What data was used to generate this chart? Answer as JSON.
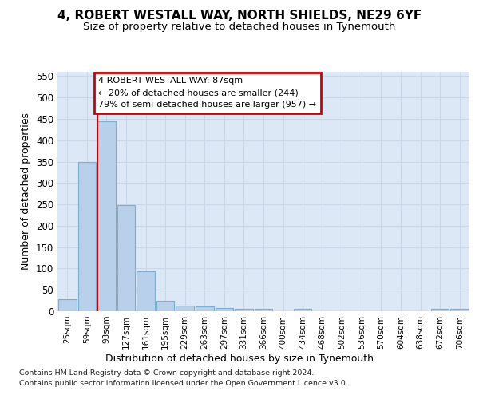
{
  "title1": "4, ROBERT WESTALL WAY, NORTH SHIELDS, NE29 6YF",
  "title2": "Size of property relative to detached houses in Tynemouth",
  "xlabel": "Distribution of detached houses by size in Tynemouth",
  "ylabel": "Number of detached properties",
  "bar_labels": [
    "25sqm",
    "59sqm",
    "93sqm",
    "127sqm",
    "161sqm",
    "195sqm",
    "229sqm",
    "263sqm",
    "297sqm",
    "331sqm",
    "366sqm",
    "400sqm",
    "434sqm",
    "468sqm",
    "502sqm",
    "536sqm",
    "570sqm",
    "604sqm",
    "638sqm",
    "672sqm",
    "706sqm"
  ],
  "bar_values": [
    28,
    350,
    445,
    248,
    93,
    25,
    14,
    11,
    7,
    6,
    5,
    0,
    5,
    0,
    0,
    0,
    0,
    0,
    0,
    5,
    5
  ],
  "bar_color": "#b8d0ea",
  "bar_edge_color": "#7aafd4",
  "vline_bin_index": 2,
  "annotation_text": "4 ROBERT WESTALL WAY: 87sqm\n← 20% of detached houses are smaller (244)\n79% of semi-detached houses are larger (957) →",
  "annotation_box_color": "white",
  "annotation_box_edge_color": "#cc0000",
  "vline_color": "#cc0000",
  "footer1": "Contains HM Land Registry data © Crown copyright and database right 2024.",
  "footer2": "Contains public sector information licensed under the Open Government Licence v3.0.",
  "ylim": [
    0,
    560
  ],
  "yticks": [
    0,
    50,
    100,
    150,
    200,
    250,
    300,
    350,
    400,
    450,
    500,
    550
  ],
  "grid_color": "#c8d8e8",
  "bg_color": "#dce8f5",
  "title1_fontsize": 11,
  "title2_fontsize": 9.5
}
